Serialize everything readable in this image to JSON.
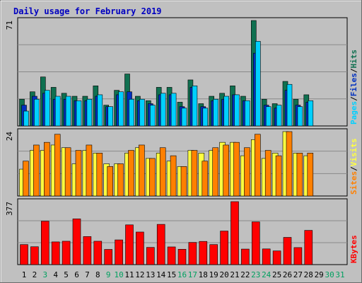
{
  "title": "Daily usage for February 2019",
  "colors": {
    "frame": "#c0c0c0",
    "plot_bg": "#c0c0c0",
    "title": "#0000c0",
    "grid": "#8a8a8a",
    "hits": "#107050",
    "files": "#0030c0",
    "pages": "#00d0ff",
    "visits": "#ffff40",
    "sites": "#ff8000",
    "kbytes": "#ff0000",
    "weekend": "#00a060",
    "weekday": "#000000"
  },
  "chart_data": [
    {
      "type": "bar",
      "name": "hits-files-pages",
      "ymax_label": "71",
      "ylim": [
        0,
        71
      ],
      "categories": [
        "1",
        "2",
        "3",
        "4",
        "5",
        "6",
        "7",
        "8",
        "9",
        "10",
        "11",
        "12",
        "13",
        "14",
        "15",
        "16",
        "17",
        "18",
        "19",
        "20",
        "21",
        "22",
        "23",
        "24",
        "25",
        "26",
        "27",
        "28",
        "29",
        "30",
        "31"
      ],
      "legend": [
        {
          "key": "pages",
          "label": "Pages"
        },
        {
          "key": "sep1",
          "label": "/"
        },
        {
          "key": "files",
          "label": "Files"
        },
        {
          "key": "sep2",
          "label": "/"
        },
        {
          "key": "hits",
          "label": "Hits"
        }
      ],
      "series": [
        {
          "key": "hits",
          "values": [
            18,
            23,
            33,
            26,
            22,
            20,
            20,
            27,
            14,
            24,
            35,
            20,
            17,
            26,
            26,
            16,
            31,
            15,
            20,
            22,
            27,
            20,
            71,
            18,
            15,
            30,
            18,
            21,
            0,
            0,
            0
          ]
        },
        {
          "key": "files",
          "values": [
            14,
            20,
            22,
            18,
            18,
            17,
            17,
            20,
            13,
            21,
            23,
            17,
            15,
            21,
            21,
            13,
            26,
            13,
            17,
            18,
            21,
            17,
            49,
            14,
            12,
            24,
            14,
            16,
            0,
            0,
            0
          ]
        },
        {
          "key": "pages",
          "values": [
            10,
            18,
            24,
            20,
            20,
            17,
            18,
            21,
            13,
            23,
            18,
            18,
            14,
            22,
            22,
            12,
            27,
            12,
            18,
            20,
            21,
            17,
            57,
            13,
            14,
            28,
            13,
            17,
            0,
            0,
            0
          ]
        }
      ]
    },
    {
      "type": "bar",
      "name": "visits-sites",
      "ymax_label": "24",
      "ylim": [
        0,
        24
      ],
      "legend": [
        {
          "key": "sites",
          "label": "Sites"
        },
        {
          "key": "sep",
          "label": "/"
        },
        {
          "key": "visits",
          "label": "Visits"
        }
      ],
      "series": [
        {
          "key": "visits",
          "values": [
            10,
            17,
            17,
            19,
            18,
            12,
            17,
            16,
            12,
            12,
            16,
            18,
            14,
            16,
            13,
            11,
            17,
            16,
            17,
            20,
            20,
            15,
            21,
            14,
            16,
            24,
            16,
            15,
            0,
            0,
            0
          ]
        },
        {
          "key": "sites",
          "values": [
            13,
            19,
            20,
            23,
            18,
            17,
            19,
            16,
            11,
            12,
            17,
            19,
            14,
            18,
            15,
            11,
            17,
            13,
            18,
            19,
            20,
            18,
            23,
            17,
            15,
            24,
            16,
            16,
            0,
            0,
            0
          ]
        }
      ]
    },
    {
      "type": "bar",
      "name": "kbytes",
      "ymax_label": "377",
      "ylim": [
        0,
        377
      ],
      "legend": [
        {
          "key": "kbytes",
          "label": "KBytes"
        }
      ],
      "series": [
        {
          "key": "kbytes",
          "values": [
            120,
            107,
            260,
            136,
            140,
            274,
            168,
            140,
            91,
            148,
            238,
            195,
            103,
            241,
            106,
            92,
            133,
            139,
            120,
            201,
            377,
            93,
            256,
            94,
            82,
            163,
            102,
            205,
            0,
            0,
            0
          ]
        }
      ]
    }
  ],
  "weekend_days": [
    3,
    9,
    10,
    16,
    17,
    23,
    24,
    30,
    31
  ]
}
